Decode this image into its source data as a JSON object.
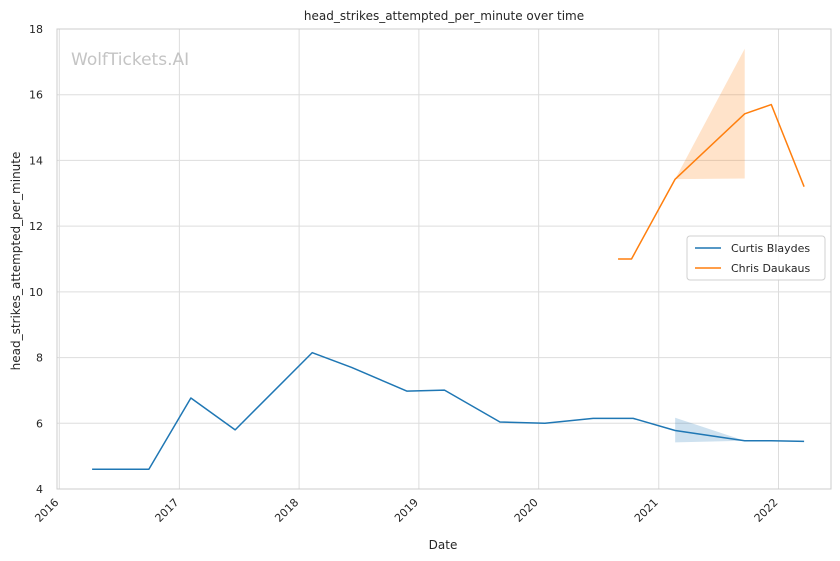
{
  "watermark": "WolfTickets.AI",
  "chart_data": {
    "type": "line",
    "title": "head_strikes_attempted_per_minute over time",
    "xlabel": "Date",
    "ylabel": "head_strikes_attempted_per_minute",
    "x_ticks": [
      "2016",
      "2017",
      "2018",
      "2019",
      "2020",
      "2021",
      "2022"
    ],
    "y_ticks": [
      "4",
      "6",
      "8",
      "10",
      "12",
      "14",
      "16",
      "18"
    ],
    "xlim": [
      "2015-12-25",
      "2022-06-10"
    ],
    "ylim": [
      4,
      18
    ],
    "grid": true,
    "legend_position": "right",
    "series": [
      {
        "name": "Curtis Blaydes",
        "color": "#1f77b4",
        "points": [
          {
            "x": "2016-04-10",
            "y": 4.6
          },
          {
            "x": "2016-09-30",
            "y": 4.6
          },
          {
            "x": "2017-02-05",
            "y": 6.77
          },
          {
            "x": "2017-06-20",
            "y": 5.8
          },
          {
            "x": "2018-02-10",
            "y": 8.15
          },
          {
            "x": "2018-06-10",
            "y": 7.7
          },
          {
            "x": "2018-11-25",
            "y": 6.98
          },
          {
            "x": "2019-03-20",
            "y": 7.01
          },
          {
            "x": "2019-09-05",
            "y": 6.04
          },
          {
            "x": "2020-01-20",
            "y": 6.0
          },
          {
            "x": "2020-06-15",
            "y": 6.15
          },
          {
            "x": "2020-10-15",
            "y": 6.15
          },
          {
            "x": "2021-02-20",
            "y": 5.78
          },
          {
            "x": "2021-09-20",
            "y": 5.47
          },
          {
            "x": "2021-12-10",
            "y": 5.47
          },
          {
            "x": "2022-03-20",
            "y": 5.45
          }
        ],
        "band": [
          {
            "x": "2021-02-20",
            "low": 5.42,
            "high": 6.17
          },
          {
            "x": "2021-09-20",
            "low": 5.47,
            "high": 5.47
          }
        ]
      },
      {
        "name": "Chris Daukaus",
        "color": "#ff7f0e",
        "points": [
          {
            "x": "2020-08-30",
            "y": 11.0
          },
          {
            "x": "2020-10-10",
            "y": 11.0
          },
          {
            "x": "2021-02-20",
            "y": 13.43
          },
          {
            "x": "2021-09-20",
            "y": 15.42
          },
          {
            "x": "2021-12-10",
            "y": 15.7
          },
          {
            "x": "2022-03-20",
            "y": 13.2
          }
        ],
        "band": [
          {
            "x": "2021-02-20",
            "low": 13.43,
            "high": 13.43
          },
          {
            "x": "2021-09-20",
            "low": 13.45,
            "high": 17.4
          }
        ]
      }
    ]
  }
}
